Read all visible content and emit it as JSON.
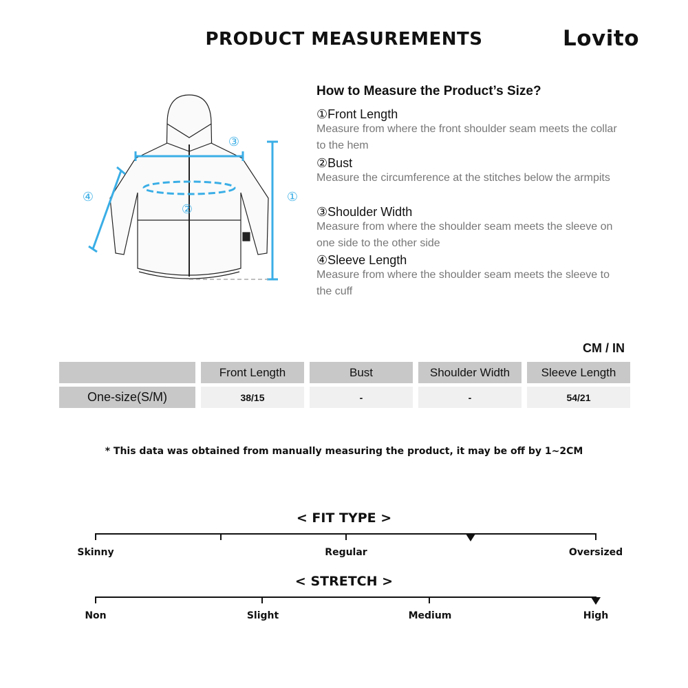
{
  "header": {
    "title": "PRODUCT MEASUREMENTS",
    "logo": "Lovito"
  },
  "guide": {
    "heading": "How to Measure the Product’s Size?",
    "items": [
      {
        "num": "①",
        "label": "Front Length",
        "desc": "Measure from where the front shoulder seam meets the collar to the hem"
      },
      {
        "num": "②",
        "label": "Bust",
        "desc": "Measure the circumference at the stitches below the armpits"
      },
      {
        "num": "③",
        "label": "Shoulder Width",
        "desc": "Measure from where the shoulder seam meets the sleeve on one side to the other side"
      },
      {
        "num": "④",
        "label": "Sleeve Length",
        "desc": "Measure from where the shoulder seam meets the sleeve to the cuff"
      }
    ],
    "diagram_markers": [
      "①",
      "②",
      "③",
      "④"
    ],
    "accent": "#3aaee6"
  },
  "table": {
    "units": "CM / IN",
    "headers": [
      "",
      "Front Length",
      "Bust",
      "Shoulder Width",
      "Sleeve Length"
    ],
    "rows": [
      [
        "One-size(S/M)",
        "38/15",
        "-",
        "-",
        "54/21"
      ]
    ]
  },
  "note": "* This data was obtained from manually measuring the product, it may be off by 1~2CM",
  "fit_type": {
    "title": "< FIT TYPE >",
    "labels": [
      "Skinny",
      "Regular",
      "Oversized"
    ],
    "level": 0.75
  },
  "stretch": {
    "title": "< STRETCH >",
    "labels": [
      "Non",
      "Slight",
      "Medium",
      "High"
    ],
    "level": 1.0
  }
}
